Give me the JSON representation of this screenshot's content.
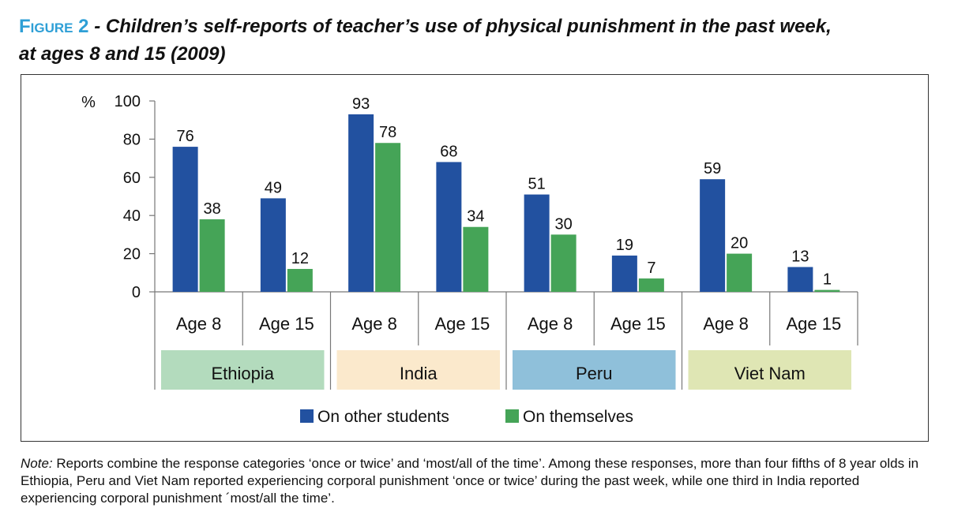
{
  "figure": {
    "label": "Figure",
    "number": "2",
    "title_line1": "- Children’s self-reports of teacher’s use of physical punishment in the past week,",
    "title_line2": "at ages 8 and 15 (2009)"
  },
  "note": {
    "prefix": "Note:",
    "text": " Reports combine the response categories ‘once or twice’ and ‘most/all of the time’. Among these responses, more than four fifths of 8 year olds in Ethiopia, Peru and Viet Nam reported experiencing corporal punishment ‘once or twice’ during the past week, while one third in India reported experiencing corporal punishment ´most/all the time’."
  },
  "chart_data": {
    "type": "bar",
    "ylabel": "%",
    "ylim": [
      0,
      100
    ],
    "yticks": [
      0,
      20,
      40,
      60,
      80,
      100
    ],
    "grid": false,
    "legend_position": "bottom-center",
    "categories": [
      "Age 8",
      "Age 15",
      "Age 8",
      "Age 15",
      "Age 8",
      "Age 15",
      "Age 8",
      "Age 15"
    ],
    "groups": [
      {
        "name": "Ethiopia",
        "color": "#b3dbbd"
      },
      {
        "name": "India",
        "color": "#fbe9cc"
      },
      {
        "name": "Peru",
        "color": "#8fc0da"
      },
      {
        "name": "Viet Nam",
        "color": "#dfe6b4"
      }
    ],
    "series": [
      {
        "name": "On other students",
        "color": "#2251a0",
        "values": [
          76,
          49,
          93,
          68,
          51,
          19,
          59,
          13
        ]
      },
      {
        "name": "On themselves",
        "color": "#45a457",
        "values": [
          38,
          12,
          78,
          34,
          30,
          7,
          20,
          1
        ]
      }
    ]
  }
}
